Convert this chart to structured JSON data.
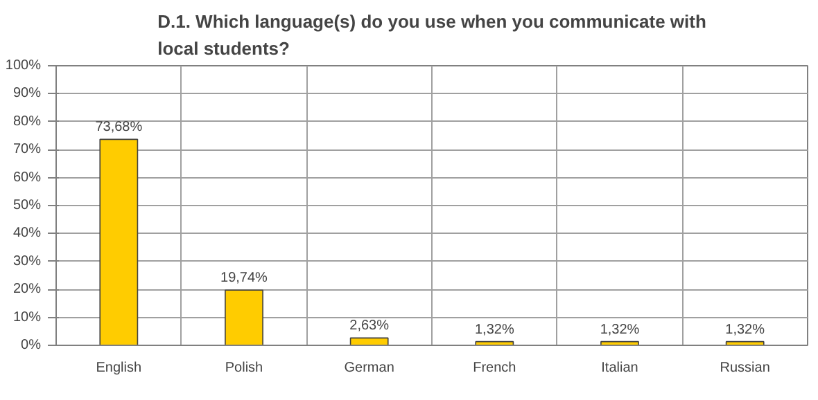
{
  "chart_data": {
    "type": "bar",
    "title": "D.1. Which language(s) do you use when you communicate with\nlocal students?",
    "categories": [
      "English",
      "Polish",
      "German",
      "French",
      "Italian",
      "Russian"
    ],
    "values": [
      73.68,
      19.74,
      2.63,
      1.32,
      1.32,
      1.32
    ],
    "value_labels": [
      "73,68%",
      "19,74%",
      "2,63%",
      "1,32%",
      "1,32%",
      "1,32%"
    ],
    "color": "#ffcc00",
    "ylim": [
      0,
      100
    ],
    "yticks": [
      {
        "value": 0,
        "label": "0%"
      },
      {
        "value": 10,
        "label": "10%"
      },
      {
        "value": 20,
        "label": "20%"
      },
      {
        "value": 30,
        "label": "30%"
      },
      {
        "value": 40,
        "label": "40%"
      },
      {
        "value": 50,
        "label": "50%"
      },
      {
        "value": 60,
        "label": "60%"
      },
      {
        "value": 70,
        "label": "70%"
      },
      {
        "value": 80,
        "label": "80%"
      },
      {
        "value": 90,
        "label": "90%"
      },
      {
        "value": 100,
        "label": "100%"
      }
    ],
    "grid": true
  }
}
